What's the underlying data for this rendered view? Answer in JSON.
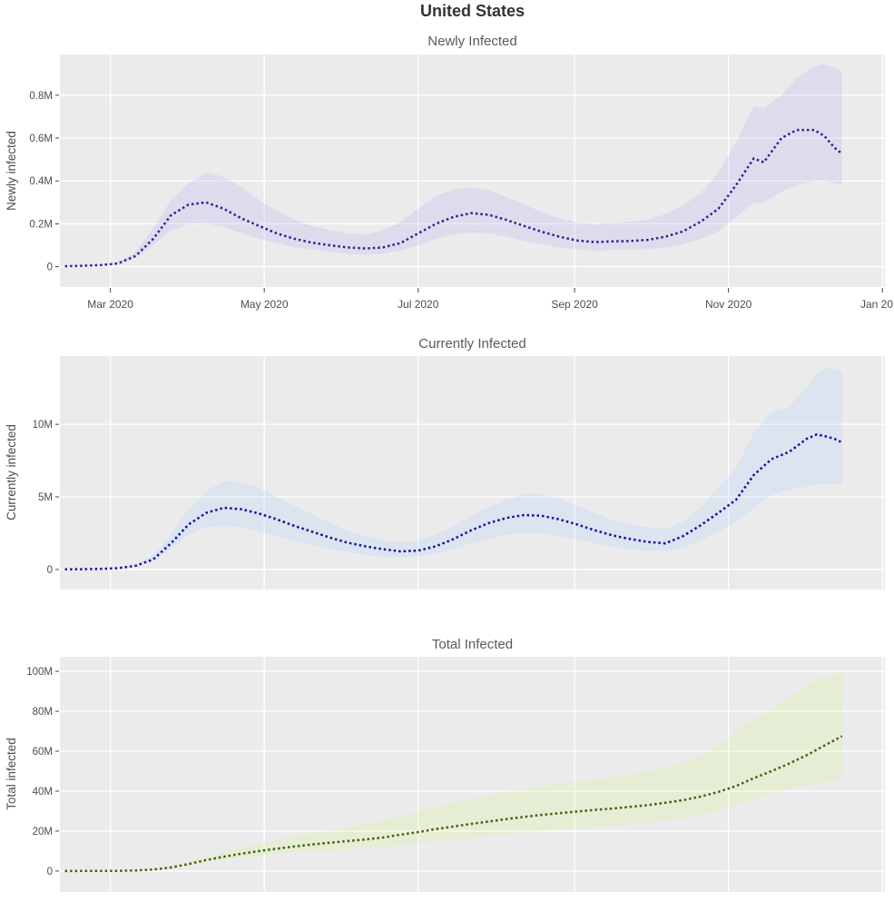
{
  "page_title": "United States",
  "colors": {
    "background": "#ffffff",
    "plot_bg": "#ebebeb",
    "grid": "#ffffff",
    "tick_mark": "#444444",
    "newly_line": "#3d1a94",
    "newly_band": "rgba(175,167,248,0.22)",
    "currently_line": "#11119c",
    "currently_band": "rgba(162,203,255,0.22)",
    "total_line": "#3e610d",
    "total_band": "rgba(212,248,135,0.22)"
  },
  "x_axis": {
    "domain_start": "2020-02-10",
    "domain_end": "2021-01-02",
    "ticks": [
      {
        "date": "2020-03-01",
        "label": "Mar 2020"
      },
      {
        "date": "2020-05-01",
        "label": "May 2020"
      },
      {
        "date": "2020-07-01",
        "label": "Jul 2020"
      },
      {
        "date": "2020-09-01",
        "label": "Sep 2020"
      },
      {
        "date": "2020-11-01",
        "label": "Nov 2020"
      },
      {
        "date": "2021-01-01",
        "label": "Jan 20"
      }
    ]
  },
  "chart_data": [
    {
      "type": "line",
      "key": "newly",
      "title": "Newly Infected",
      "ylabel": "Newly infected",
      "xlabel": "",
      "value_unit": "millions of people",
      "style": "dotted median line with uncertainty band",
      "legend": "none",
      "grid": "on",
      "line_color": "#3d1a94",
      "band_color": "rgba(175,167,248,0.22)",
      "ylim": [
        -0.095,
        0.99
      ],
      "yticks": [
        {
          "v": 0,
          "label": "0"
        },
        {
          "v": 0.2,
          "label": "0.2M"
        },
        {
          "v": 0.4,
          "label": "0.4M"
        },
        {
          "v": 0.6,
          "label": "0.6M"
        },
        {
          "v": 0.8,
          "label": "0.8M"
        }
      ],
      "x": [
        "2020-02-12",
        "2020-02-19",
        "2020-02-26",
        "2020-03-04",
        "2020-03-11",
        "2020-03-18",
        "2020-03-25",
        "2020-04-01",
        "2020-04-08",
        "2020-04-15",
        "2020-04-22",
        "2020-04-29",
        "2020-05-06",
        "2020-05-13",
        "2020-05-20",
        "2020-05-27",
        "2020-06-03",
        "2020-06-10",
        "2020-06-17",
        "2020-06-24",
        "2020-07-01",
        "2020-07-08",
        "2020-07-15",
        "2020-07-22",
        "2020-07-29",
        "2020-08-05",
        "2020-08-12",
        "2020-08-19",
        "2020-08-26",
        "2020-09-02",
        "2020-09-09",
        "2020-09-16",
        "2020-09-23",
        "2020-09-30",
        "2020-10-07",
        "2020-10-14",
        "2020-10-21",
        "2020-10-28",
        "2020-11-04",
        "2020-11-11",
        "2020-11-15",
        "2020-11-22",
        "2020-11-28",
        "2020-12-05",
        "2020-12-09",
        "2020-12-13",
        "2020-12-16"
      ],
      "median": [
        0.002,
        0.004,
        0.007,
        0.015,
        0.05,
        0.13,
        0.24,
        0.29,
        0.3,
        0.27,
        0.225,
        0.19,
        0.155,
        0.13,
        0.112,
        0.1,
        0.09,
        0.085,
        0.09,
        0.11,
        0.155,
        0.2,
        0.232,
        0.25,
        0.242,
        0.218,
        0.19,
        0.163,
        0.14,
        0.122,
        0.115,
        0.118,
        0.12,
        0.125,
        0.14,
        0.165,
        0.21,
        0.27,
        0.38,
        0.505,
        0.487,
        0.6,
        0.638,
        0.638,
        0.61,
        0.555,
        0.527
      ],
      "lower": [
        0.001,
        0.003,
        0.005,
        0.012,
        0.04,
        0.1,
        0.17,
        0.2,
        0.2,
        0.185,
        0.155,
        0.13,
        0.11,
        0.09,
        0.08,
        0.07,
        0.06,
        0.055,
        0.06,
        0.075,
        0.1,
        0.13,
        0.15,
        0.16,
        0.155,
        0.14,
        0.12,
        0.105,
        0.09,
        0.08,
        0.075,
        0.078,
        0.08,
        0.082,
        0.09,
        0.105,
        0.13,
        0.165,
        0.23,
        0.3,
        0.3,
        0.35,
        0.38,
        0.4,
        0.4,
        0.39,
        0.38
      ],
      "upper": [
        0.003,
        0.006,
        0.01,
        0.02,
        0.07,
        0.18,
        0.31,
        0.39,
        0.44,
        0.42,
        0.37,
        0.31,
        0.26,
        0.22,
        0.19,
        0.17,
        0.155,
        0.15,
        0.17,
        0.21,
        0.27,
        0.33,
        0.36,
        0.37,
        0.355,
        0.325,
        0.29,
        0.255,
        0.225,
        0.205,
        0.2,
        0.205,
        0.21,
        0.22,
        0.245,
        0.285,
        0.345,
        0.44,
        0.58,
        0.75,
        0.74,
        0.8,
        0.88,
        0.935,
        0.945,
        0.93,
        0.91
      ]
    },
    {
      "type": "line",
      "key": "currently",
      "title": "Currently Infected",
      "ylabel": "Currently infected",
      "xlabel": "",
      "value_unit": "millions of people",
      "style": "dotted median line with uncertainty band",
      "legend": "none",
      "grid": "on",
      "line_color": "#11119c",
      "band_color": "rgba(162,203,255,0.22)",
      "ylim": [
        -1.38,
        14.7
      ],
      "yticks": [
        {
          "v": 0,
          "label": "0"
        },
        {
          "v": 5,
          "label": "5M"
        },
        {
          "v": 10,
          "label": "10M"
        }
      ],
      "x": [
        "2020-02-12",
        "2020-02-19",
        "2020-02-26",
        "2020-03-04",
        "2020-03-11",
        "2020-03-18",
        "2020-03-25",
        "2020-04-01",
        "2020-04-08",
        "2020-04-15",
        "2020-04-22",
        "2020-04-29",
        "2020-05-06",
        "2020-05-13",
        "2020-05-20",
        "2020-05-27",
        "2020-06-03",
        "2020-06-10",
        "2020-06-17",
        "2020-06-24",
        "2020-07-01",
        "2020-07-08",
        "2020-07-15",
        "2020-07-22",
        "2020-07-29",
        "2020-08-05",
        "2020-08-12",
        "2020-08-19",
        "2020-08-26",
        "2020-09-02",
        "2020-09-09",
        "2020-09-16",
        "2020-09-23",
        "2020-09-30",
        "2020-10-07",
        "2020-10-14",
        "2020-10-21",
        "2020-10-28",
        "2020-11-04",
        "2020-11-11",
        "2020-11-18",
        "2020-11-25",
        "2020-12-02",
        "2020-12-06",
        "2020-12-10",
        "2020-12-13",
        "2020-12-16"
      ],
      "median": [
        0.01,
        0.02,
        0.04,
        0.09,
        0.25,
        0.7,
        1.8,
        3.1,
        3.9,
        4.25,
        4.15,
        3.85,
        3.45,
        3.0,
        2.6,
        2.2,
        1.85,
        1.6,
        1.4,
        1.25,
        1.3,
        1.6,
        2.1,
        2.7,
        3.2,
        3.55,
        3.75,
        3.7,
        3.45,
        3.1,
        2.7,
        2.35,
        2.1,
        1.9,
        1.8,
        2.3,
        3.05,
        3.9,
        4.8,
        6.5,
        7.6,
        8.1,
        9.0,
        9.3,
        9.15,
        9.0,
        8.75
      ],
      "lower": [
        0.005,
        0.01,
        0.03,
        0.07,
        0.2,
        0.55,
        1.4,
        2.4,
        2.9,
        3.0,
        2.9,
        2.6,
        2.3,
        2.0,
        1.7,
        1.4,
        1.2,
        1.0,
        0.9,
        0.85,
        0.9,
        1.1,
        1.4,
        1.8,
        2.1,
        2.4,
        2.5,
        2.5,
        2.3,
        2.1,
        1.8,
        1.6,
        1.4,
        1.3,
        1.25,
        1.5,
        2.0,
        2.6,
        3.3,
        4.2,
        5.1,
        5.5,
        5.7,
        5.85,
        5.9,
        5.9,
        5.9
      ],
      "upper": [
        0.015,
        0.03,
        0.06,
        0.12,
        0.35,
        0.95,
        2.4,
        4.2,
        5.4,
        6.1,
        6.0,
        5.6,
        5.0,
        4.4,
        3.8,
        3.2,
        2.7,
        2.3,
        2.0,
        1.9,
        2.0,
        2.4,
        3.0,
        3.7,
        4.3,
        4.8,
        5.2,
        5.2,
        4.9,
        4.4,
        3.9,
        3.4,
        3.1,
        2.9,
        2.8,
        3.3,
        4.3,
        5.6,
        7.0,
        9.4,
        10.8,
        11.2,
        12.6,
        13.5,
        13.9,
        13.8,
        13.6
      ]
    },
    {
      "type": "line",
      "key": "total",
      "title": "Total Infected",
      "ylabel": "Total infected",
      "xlabel": "",
      "value_unit": "millions of people",
      "style": "dotted median line with uncertainty band",
      "legend": "none",
      "grid": "on",
      "line_color": "#3e610d",
      "band_color": "rgba(212,248,135,0.22)",
      "ylim": [
        -10.5,
        107.3
      ],
      "yticks": [
        {
          "v": 0,
          "label": "0"
        },
        {
          "v": 20,
          "label": "20M"
        },
        {
          "v": 40,
          "label": "40M"
        },
        {
          "v": 60,
          "label": "60M"
        },
        {
          "v": 80,
          "label": "80M"
        },
        {
          "v": 100,
          "label": "100M"
        }
      ],
      "x": [
        "2020-02-12",
        "2020-02-19",
        "2020-02-26",
        "2020-03-04",
        "2020-03-11",
        "2020-03-18",
        "2020-03-25",
        "2020-04-01",
        "2020-04-08",
        "2020-04-15",
        "2020-04-22",
        "2020-04-29",
        "2020-05-06",
        "2020-05-13",
        "2020-05-20",
        "2020-05-27",
        "2020-06-03",
        "2020-06-10",
        "2020-06-17",
        "2020-06-24",
        "2020-07-01",
        "2020-07-08",
        "2020-07-15",
        "2020-07-22",
        "2020-07-29",
        "2020-08-05",
        "2020-08-12",
        "2020-08-19",
        "2020-08-26",
        "2020-09-02",
        "2020-09-09",
        "2020-09-16",
        "2020-09-23",
        "2020-09-30",
        "2020-10-07",
        "2020-10-14",
        "2020-10-21",
        "2020-10-28",
        "2020-11-04",
        "2020-11-11",
        "2020-11-18",
        "2020-11-25",
        "2020-12-02",
        "2020-12-09",
        "2020-12-16"
      ],
      "median": [
        0.02,
        0.03,
        0.05,
        0.1,
        0.3,
        0.8,
        1.8,
        3.5,
        5.5,
        7.2,
        8.7,
        10.0,
        11.2,
        12.3,
        13.3,
        14.2,
        15.0,
        15.8,
        16.8,
        18.2,
        19.5,
        21.0,
        22.3,
        23.6,
        24.8,
        26.0,
        27.1,
        28.1,
        29.0,
        29.8,
        30.6,
        31.3,
        32.1,
        33.0,
        34.2,
        35.5,
        37.3,
        39.6,
        42.6,
        46.5,
        50.0,
        53.8,
        58.0,
        62.8,
        67.5
      ],
      "lower": [
        0.01,
        0.02,
        0.04,
        0.08,
        0.25,
        0.7,
        1.5,
        2.9,
        4.4,
        5.7,
        6.8,
        7.7,
        8.5,
        9.2,
        9.9,
        10.4,
        10.9,
        11.4,
        12.0,
        12.9,
        13.8,
        14.8,
        15.7,
        16.6,
        17.5,
        18.4,
        19.2,
        20.0,
        20.7,
        21.4,
        22.0,
        22.7,
        23.4,
        24.2,
        25.2,
        26.4,
        28.0,
        30.0,
        33.0,
        36.0,
        38.5,
        41.0,
        43.0,
        44.5,
        45.5
      ],
      "upper": [
        0.03,
        0.05,
        0.08,
        0.15,
        0.4,
        1.1,
        2.5,
        4.8,
        7.5,
        9.8,
        12.0,
        14.0,
        15.8,
        17.5,
        19.0,
        20.5,
        22.0,
        23.5,
        25.3,
        27.5,
        30.0,
        32.3,
        34.3,
        36.2,
        38.0,
        39.7,
        41.2,
        42.5,
        43.7,
        44.8,
        46.0,
        47.2,
        48.5,
        50.0,
        52.0,
        54.5,
        58.0,
        62.5,
        70.0,
        76.0,
        81.0,
        87.0,
        93.0,
        97.5,
        100.0
      ]
    }
  ]
}
